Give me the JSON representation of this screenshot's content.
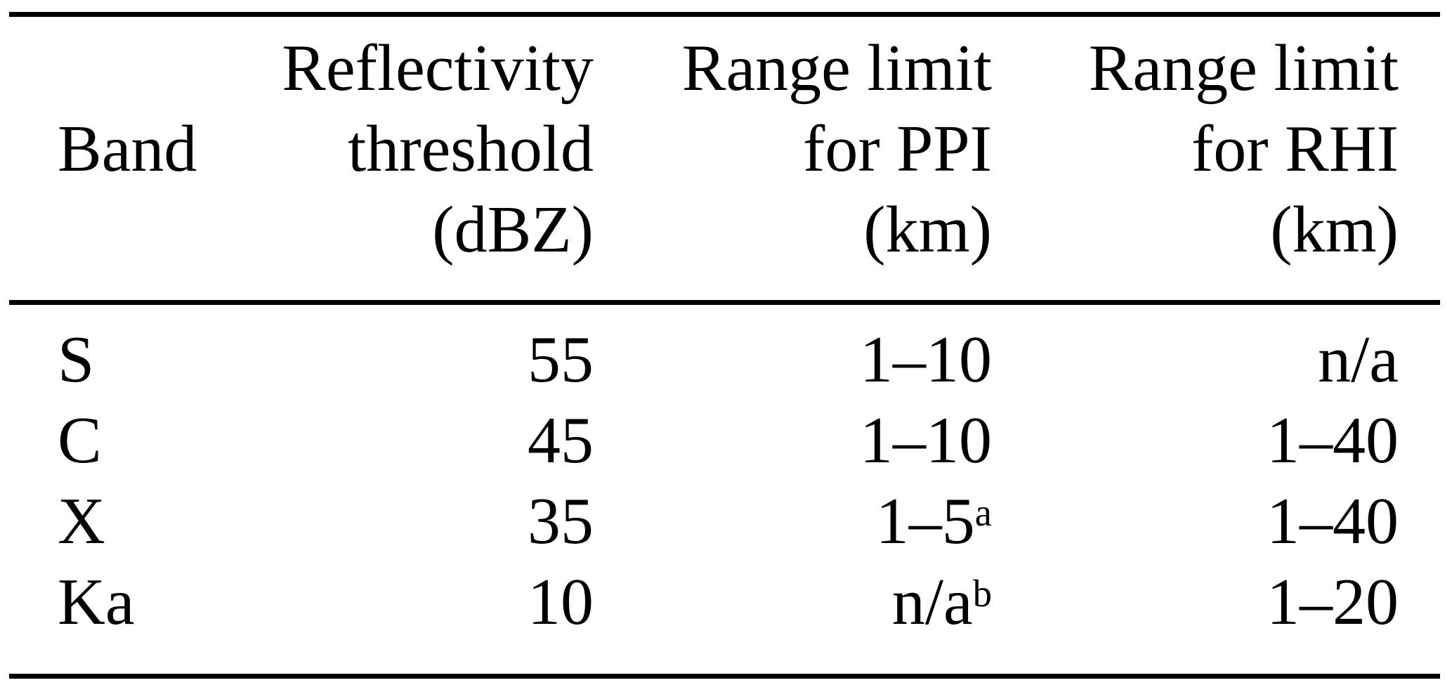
{
  "page_bg": "#ffffff",
  "text_color": "#000000",
  "table": {
    "header": [
      [
        "",
        "Band",
        ""
      ],
      [
        "Reflectivity",
        "threshold",
        "(dBZ)"
      ],
      [
        "Range limit",
        "for PPI",
        "(km)"
      ],
      [
        "Range limit",
        "for RHI",
        "(km)"
      ]
    ],
    "rows": [
      {
        "band": "S",
        "threshold": "55",
        "ppi": "1–10",
        "ppi_sup": "",
        "rhi": "n/a",
        "rhi_sup": ""
      },
      {
        "band": "C",
        "threshold": "45",
        "ppi": "1–10",
        "ppi_sup": "",
        "rhi": "1–40",
        "rhi_sup": ""
      },
      {
        "band": "X",
        "threshold": "35",
        "ppi": "1–5",
        "ppi_sup": "a",
        "rhi": "1–40",
        "rhi_sup": ""
      },
      {
        "band": "Ka",
        "threshold": "10",
        "ppi": "n/a",
        "ppi_sup": "b",
        "rhi": "1–20",
        "rhi_sup": ""
      }
    ]
  },
  "chart_data": {
    "type": "table",
    "columns": [
      "Band",
      "Reflectivity threshold (dBZ)",
      "Range limit for PPI (km)",
      "Range limit for RHI (km)"
    ],
    "rows": [
      [
        "S",
        "55",
        "1–10",
        "n/a"
      ],
      [
        "C",
        "45",
        "1–10",
        "1–40"
      ],
      [
        "X",
        "35",
        "1–5^a",
        "1–40"
      ],
      [
        "Ka",
        "10",
        "n/a^b",
        "1–20"
      ]
    ]
  }
}
